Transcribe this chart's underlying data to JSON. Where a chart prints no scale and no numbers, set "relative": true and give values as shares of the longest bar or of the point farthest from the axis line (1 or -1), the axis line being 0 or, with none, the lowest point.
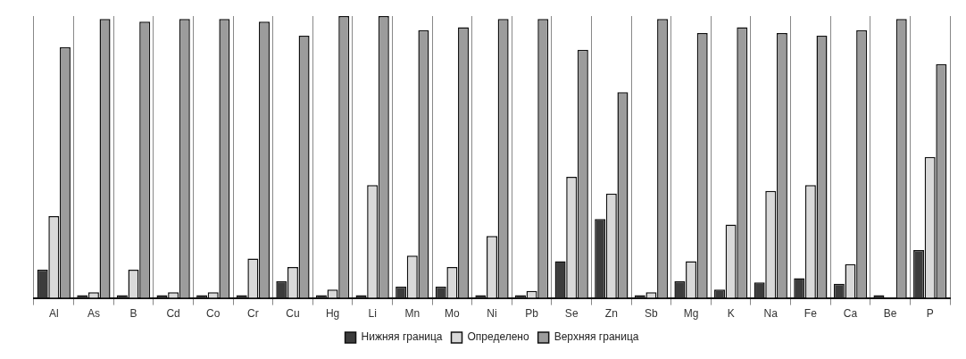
{
  "chart_data": {
    "type": "bar",
    "relative": true,
    "categories": [
      "Al",
      "As",
      "B",
      "Cd",
      "Co",
      "Cr",
      "Cu",
      "Hg",
      "Li",
      "Mn",
      "Mo",
      "Ni",
      "Pb",
      "Se",
      "Zn",
      "Sb",
      "Mg",
      "K",
      "Na",
      "Fe",
      "Ca",
      "Be",
      "P"
    ],
    "series": [
      {
        "name": "Нижняя граница",
        "color": "#3c3c3c",
        "values": [
          0.1,
          0.01,
          0.01,
          0.01,
          0.01,
          0.01,
          0.06,
          0.01,
          0.01,
          0.04,
          0.04,
          0.01,
          0.01,
          0.13,
          0.28,
          0.01,
          0.06,
          0.03,
          0.055,
          0.07,
          0.05,
          0.01,
          0.17
        ]
      },
      {
        "name": "Определено",
        "color": "#d9d9d9",
        "values": [
          0.29,
          0.02,
          0.1,
          0.02,
          0.02,
          0.14,
          0.11,
          0.03,
          0.4,
          0.15,
          0.11,
          0.22,
          0.025,
          0.43,
          0.37,
          0.02,
          0.13,
          0.26,
          0.38,
          0.4,
          0.12,
          null,
          0.5
        ]
      },
      {
        "name": "Верхняя граница",
        "color": "#9c9c9c",
        "values": [
          0.89,
          0.99,
          0.98,
          0.99,
          0.99,
          0.98,
          0.93,
          1,
          1,
          0.95,
          0.96,
          0.99,
          0.99,
          0.88,
          0.73,
          0.99,
          0.94,
          0.96,
          0.94,
          0.93,
          0.95,
          0.99,
          0.83
        ]
      }
    ],
    "grid": "x",
    "legend": "bottom"
  }
}
